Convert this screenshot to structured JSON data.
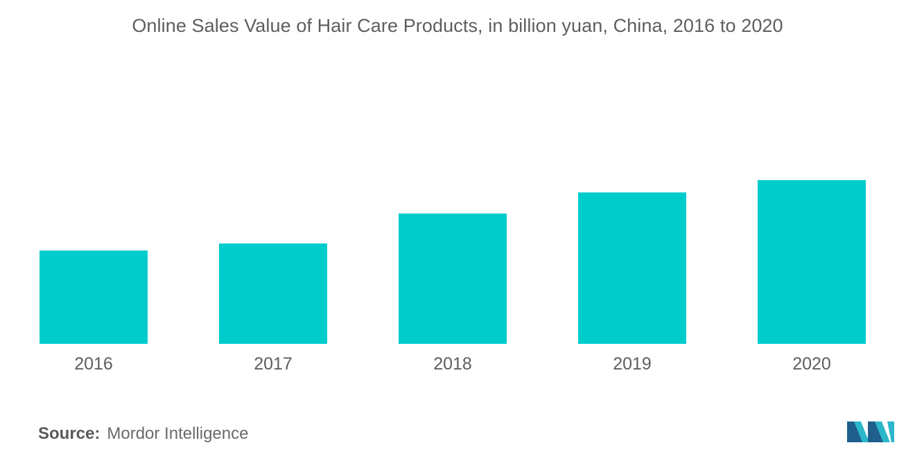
{
  "chart_data": {
    "type": "bar",
    "title": "Online Sales Value of Hair Care Products, in billion yuan, China, 2016 to 2020",
    "categories": [
      "2016",
      "2017",
      "2018",
      "2019",
      "2020"
    ],
    "values": [
      53,
      57,
      74,
      86,
      93
    ],
    "ylim": [
      0,
      100
    ],
    "xlabel": "",
    "ylabel": "",
    "grid": false,
    "legend": "none",
    "bar_color": "#00cccc"
  },
  "source": {
    "label": "Source:",
    "text": "Mordor Intelligence"
  },
  "logo": {
    "icon": "mordor-intelligence-logo-icon",
    "colors": [
      "#1e5f8c",
      "#2bb7c9"
    ]
  }
}
